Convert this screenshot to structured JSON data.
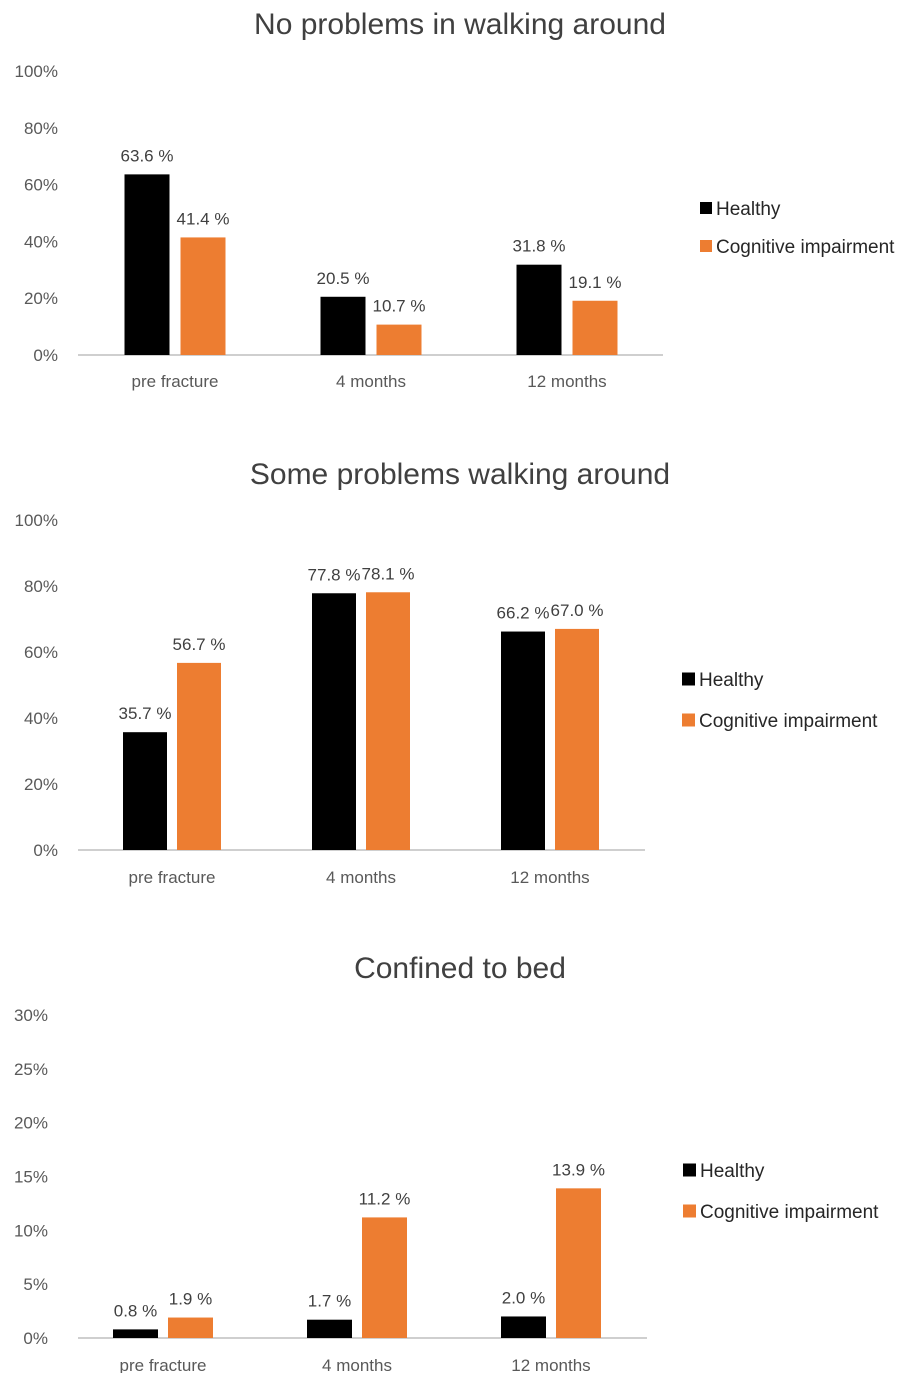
{
  "colors": {
    "healthy": "#000000",
    "cognitive": "#ED7D31"
  },
  "chart_data": [
    {
      "type": "bar",
      "title": "No problems in walking around",
      "categories": [
        "pre fracture",
        "4 months",
        "12 months"
      ],
      "ylim": [
        0,
        100
      ],
      "yticks": [
        "0%",
        "20%",
        "40%",
        "60%",
        "80%",
        "100%"
      ],
      "ytick_values": [
        0,
        20,
        40,
        60,
        80,
        100
      ],
      "series": [
        {
          "name": "Healthy",
          "values": [
            63.6,
            20.5,
            31.8
          ],
          "labels": [
            "63.6 %",
            "20.5 %",
            "31.8 %"
          ]
        },
        {
          "name": "Cognitive impairment",
          "values": [
            41.4,
            10.7,
            19.1
          ],
          "labels": [
            "41.4 %",
            "10.7 %",
            "19.1 %"
          ]
        }
      ],
      "grid": false,
      "legend": "right"
    },
    {
      "type": "bar",
      "title": "Some problems walking around",
      "categories": [
        "pre fracture",
        "4 months",
        "12 months"
      ],
      "ylim": [
        0,
        100
      ],
      "yticks": [
        "0%",
        "20%",
        "40%",
        "60%",
        "80%",
        "100%"
      ],
      "ytick_values": [
        0,
        20,
        40,
        60,
        80,
        100
      ],
      "series": [
        {
          "name": "Healthy",
          "values": [
            35.7,
            77.8,
            66.2
          ],
          "labels": [
            "35.7 %",
            "77.8 %",
            "66.2 %"
          ]
        },
        {
          "name": "Cognitive impairment",
          "values": [
            56.7,
            78.1,
            67.0
          ],
          "labels": [
            "56.7 %",
            "78.1 %",
            "67.0 %"
          ]
        }
      ],
      "grid": false,
      "legend": "right"
    },
    {
      "type": "bar",
      "title": "Confined to bed",
      "categories": [
        "pre fracture",
        "4 months",
        "12 months"
      ],
      "ylim": [
        0,
        30
      ],
      "yticks": [
        "0%",
        "5%",
        "10%",
        "15%",
        "20%",
        "25%",
        "30%"
      ],
      "ytick_values": [
        0,
        5,
        10,
        15,
        20,
        25,
        30
      ],
      "series": [
        {
          "name": "Healthy",
          "values": [
            0.8,
            1.7,
            2.0
          ],
          "labels": [
            "0.8 %",
            "1.7 %",
            "2.0 %"
          ]
        },
        {
          "name": "Cognitive impairment",
          "values": [
            1.9,
            11.2,
            13.9
          ],
          "labels": [
            "1.9 %",
            "11.2 %",
            "13.9 %"
          ]
        }
      ],
      "grid": false,
      "legend": "right"
    }
  ]
}
